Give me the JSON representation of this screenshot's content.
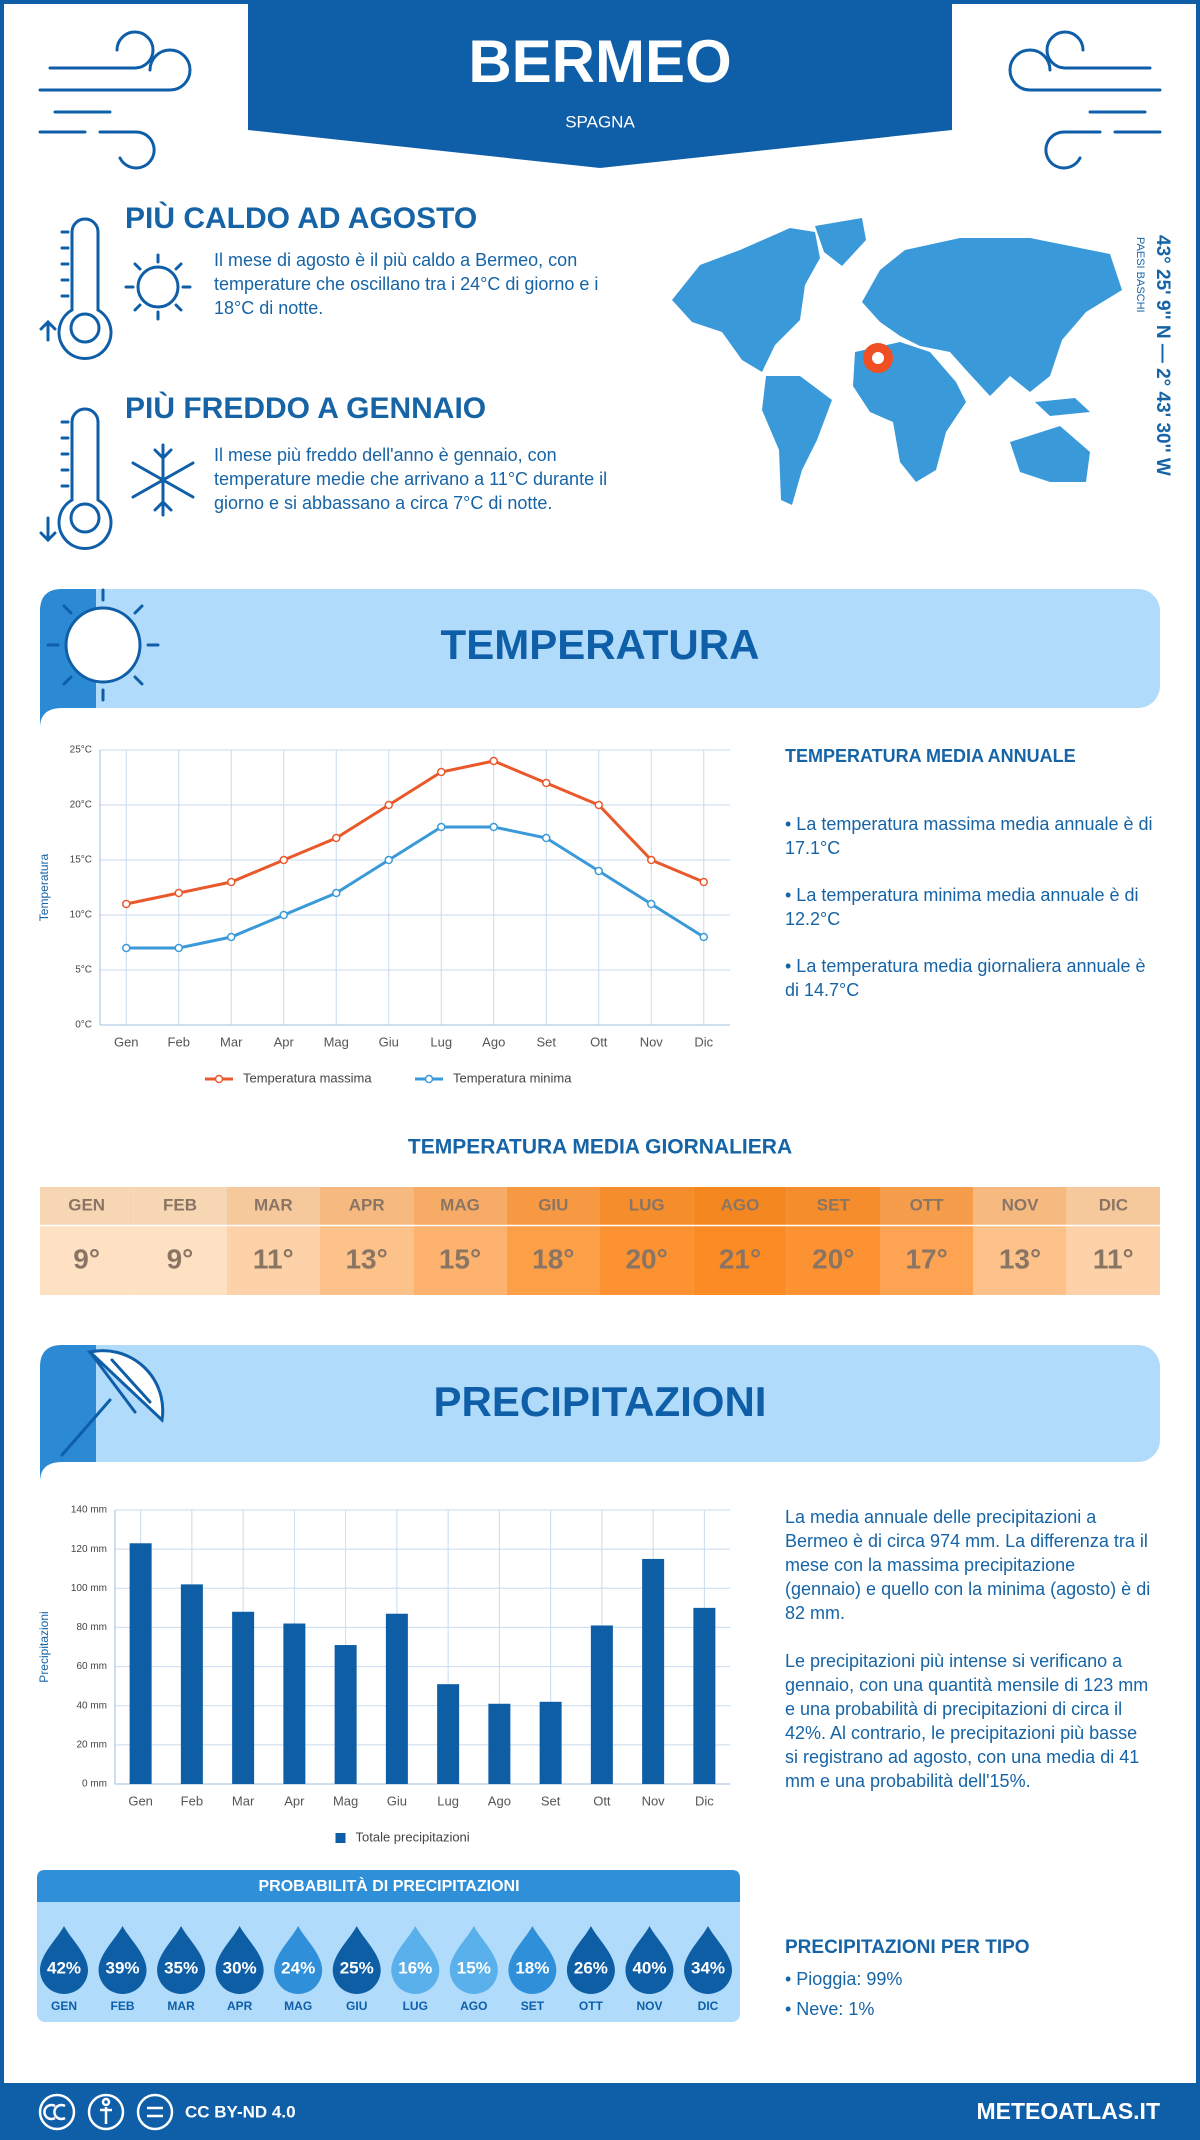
{
  "header": {
    "title": "BERMEO",
    "subtitle": "SPAGNA",
    "coordinates": "43° 25' 9'' N — 2° 43' 30'' W",
    "region": "PAESI BASCHI"
  },
  "highlights": [
    {
      "heading": "PIÙ CALDO AD AGOSTO",
      "text": "Il mese di agosto è il più caldo a Bermeo, con temperature che oscillano tra i 24°C di giorno e i 18°C di notte."
    },
    {
      "heading": "PIÙ FREDDO A GENNAIO",
      "text": "Il mese più freddo dell'anno è gennaio, con temperature medie che arrivano a 11°C durante il giorno e si abbassano a circa 7°C di notte."
    }
  ],
  "temperature_section": {
    "title": "TEMPERATURA",
    "annual_heading": "TEMPERATURA MEDIA ANNUALE",
    "annual_items": [
      "• La temperatura massima media annuale è di 17.1°C",
      "• La temperatura minima media annuale è di 12.2°C",
      "• La temperatura media giornaliera annuale è di 14.7°C"
    ]
  },
  "chart_data": [
    {
      "type": "line",
      "y_label": "Temperatura",
      "categories": [
        "Gen",
        "Feb",
        "Mar",
        "Apr",
        "Mag",
        "Giu",
        "Lug",
        "Ago",
        "Set",
        "Ott",
        "Nov",
        "Dic"
      ],
      "series": [
        {
          "name": "Temperatura massima",
          "color": "#e9592b",
          "values": [
            11,
            12,
            13,
            15,
            17,
            20,
            23,
            24,
            22,
            20,
            15,
            13
          ]
        },
        {
          "name": "Temperatura minima",
          "color": "#3a9ad9",
          "values": [
            7,
            7,
            8,
            10,
            12,
            15,
            18,
            18,
            17,
            14,
            11,
            8
          ]
        }
      ],
      "ylim": [
        0,
        25
      ],
      "yticks": [
        {
          "value": 0,
          "label": "0°C"
        },
        {
          "value": 5,
          "label": "5°C"
        },
        {
          "value": 10,
          "label": "10°C"
        },
        {
          "value": 15,
          "label": "15°C"
        },
        {
          "value": 20,
          "label": "20°C"
        },
        {
          "value": 25,
          "label": "25°C"
        }
      ],
      "grid": true,
      "legend": "bottom"
    },
    {
      "type": "bar",
      "y_label": "Precipitazioni",
      "categories": [
        "Gen",
        "Feb",
        "Mar",
        "Apr",
        "Mag",
        "Giu",
        "Lug",
        "Ago",
        "Set",
        "Ott",
        "Nov",
        "Dic"
      ],
      "series": [
        {
          "name": "Totale precipitazioni",
          "color": "#0e5ea6",
          "values": [
            123,
            102,
            88,
            82,
            71,
            87,
            51,
            41,
            42,
            81,
            115,
            90
          ]
        }
      ],
      "ylim": [
        0,
        140
      ],
      "yticks": [
        {
          "value": 0,
          "label": "0 mm"
        },
        {
          "value": 20,
          "label": "20 mm"
        },
        {
          "value": 40,
          "label": "40 mm"
        },
        {
          "value": 60,
          "label": "60 mm"
        },
        {
          "value": 80,
          "label": "80 mm"
        },
        {
          "value": 100,
          "label": "100 mm"
        },
        {
          "value": 120,
          "label": "120 mm"
        },
        {
          "value": 140,
          "label": "140 mm"
        }
      ],
      "grid": true,
      "legend": "bottom"
    }
  ],
  "daily_temperature": {
    "title": "TEMPERATURA MEDIA GIORNALIERA",
    "months": [
      "GEN",
      "FEB",
      "MAR",
      "APR",
      "MAG",
      "GIU",
      "LUG",
      "AGO",
      "SET",
      "OTT",
      "NOV",
      "DIC"
    ],
    "values": [
      9,
      9,
      11,
      13,
      15,
      18,
      20,
      21,
      20,
      17,
      13,
      11
    ],
    "value_labels": [
      "9°",
      "9°",
      "11°",
      "13°",
      "15°",
      "18°",
      "20°",
      "21°",
      "20°",
      "17°",
      "13°",
      "11°"
    ],
    "colors": [
      "#fee0c2",
      "#fee0c2",
      "#fdd2a8",
      "#fdc28a",
      "#fdb36e",
      "#fd9f47",
      "#fc9231",
      "#fb8b22",
      "#fc9231",
      "#fda352",
      "#fdc28a",
      "#fdd2a8"
    ]
  },
  "precipitation_section": {
    "title": "PRECIPITAZIONI",
    "paragraphs": [
      "La media annuale delle precipitazioni a Bermeo è di circa 974 mm. La differenza tra il mese con la massima precipitazione (gennaio) e quello con la minima (agosto) è di 82 mm.",
      "Le precipitazioni più intense si verificano a gennaio, con una quantità mensile di 123 mm e una probabilità di precipitazioni di circa il 42%. Al contrario, le precipitazioni più basse si registrano ad agosto, con una media di 41 mm e una probabilità dell'15%."
    ],
    "probability": {
      "title": "PROBABILITÀ DI PRECIPITAZIONI",
      "months": [
        "GEN",
        "FEB",
        "MAR",
        "APR",
        "MAG",
        "GIU",
        "LUG",
        "AGO",
        "SET",
        "OTT",
        "NOV",
        "DIC"
      ],
      "values": [
        42,
        39,
        35,
        30,
        24,
        25,
        16,
        15,
        18,
        26,
        40,
        34
      ],
      "value_labels": [
        "42%",
        "39%",
        "35%",
        "30%",
        "24%",
        "25%",
        "16%",
        "15%",
        "18%",
        "26%",
        "40%",
        "34%"
      ],
      "colors": [
        "#0e5ea6",
        "#0e5ea6",
        "#0e5ea6",
        "#0e5ea6",
        "#2f8fd8",
        "#0e5ea6",
        "#5ab0ea",
        "#5ab0ea",
        "#2f8fd8",
        "#0e5ea6",
        "#0e5ea6",
        "#0e5ea6"
      ]
    },
    "by_type": {
      "heading": "PRECIPITAZIONI PER TIPO",
      "items": [
        "• Pioggia: 99%",
        "• Neve: 1%"
      ]
    }
  },
  "footer": {
    "license": "CC BY-ND 4.0",
    "site": "METEOATLAS.IT"
  }
}
